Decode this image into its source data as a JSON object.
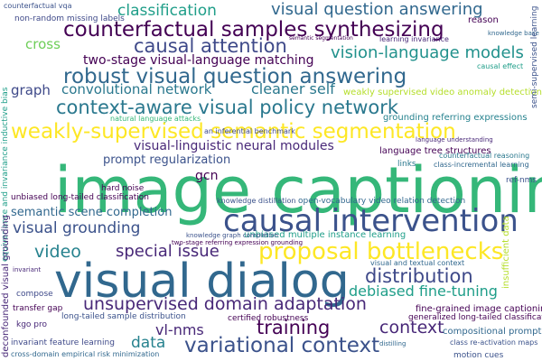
{
  "words": {
    "image_captioning": {
      "text": "image captioning",
      "color": "#35b779"
    },
    "visual_dialog": {
      "text": "visual dialog",
      "color": "#31688e"
    },
    "causal_intervention": {
      "text": "causal intervention",
      "color": "#3b528b"
    },
    "weakly_supervised_semantic_segmentation": {
      "text": "weakly-supervised semantic segmentation",
      "color": "#fde725"
    },
    "counterfactual_samples_synthesizing": {
      "text": "counterfactual samples synthesizing",
      "color": "#440154"
    },
    "robust_vqa": {
      "text": "robust visual question answering",
      "color": "#31688e"
    },
    "context_aware_visual_policy_network": {
      "text": "context-aware visual policy network",
      "color": "#2a788e"
    },
    "variational_context": {
      "text": "variational context",
      "color": "#3b528b"
    },
    "proposal_bottlenecks": {
      "text": "proposal bottlenecks",
      "color": "#fde725"
    },
    "unsupervised_domain_adaptation": {
      "text": "unsupervised domain adaptation",
      "color": "#482878"
    },
    "causal_attention": {
      "text": "causal attention",
      "color": "#3e4989"
    },
    "visual_question_answering": {
      "text": "visual question answering",
      "color": "#31688e"
    },
    "vision_language_models": {
      "text": "vision-language models",
      "color": "#21918c"
    },
    "classification": {
      "text": "classification",
      "color": "#1f9e89"
    },
    "distribution": {
      "text": "distribution",
      "color": "#3e4989"
    },
    "training": {
      "text": "training",
      "color": "#440154"
    },
    "visual_grounding": {
      "text": "visual grounding",
      "color": "#3b528b"
    },
    "video": {
      "text": "video",
      "color": "#26828e"
    },
    "special_issue": {
      "text": "special issue",
      "color": "#482878"
    },
    "context": {
      "text": "context",
      "color": "#482878"
    },
    "data": {
      "text": "data",
      "color": "#26828e"
    },
    "vl_nms": {
      "text": "vl-nms",
      "color": "#482878"
    },
    "debiased_fine_tuning": {
      "text": "debiased fine-tuning",
      "color": "#1f9e89"
    },
    "cross": {
      "text": "cross",
      "color": "#6ece58"
    },
    "graph": {
      "text": "graph",
      "color": "#3e4989"
    },
    "convolutional_network": {
      "text": "convolutional network",
      "color": "#2a788e"
    },
    "two_stage_vl_matching": {
      "text": "two-stage visual-language matching",
      "color": "#440154"
    },
    "cleaner_self": {
      "text": "cleaner self",
      "color": "#2a788e"
    },
    "visual_linguistic_neural_modules": {
      "text": "visual-linguistic neural modules",
      "color": "#482878"
    },
    "prompt_regularization": {
      "text": "prompt regularization",
      "color": "#3b528b"
    },
    "semantic_scene_completion": {
      "text": "semantic scene completion",
      "color": "#31688e"
    },
    "gcn": {
      "text": "gcn",
      "color": "#440154"
    },
    "weakly_supervised_video_anomaly_detection": {
      "text": "weakly supervised video anomaly detection",
      "color": "#b5de2b"
    },
    "grounding_referring_expressions": {
      "text": "grounding referring expressions",
      "color": "#26828e"
    },
    "language_tree_structures": {
      "text": "language tree structures",
      "color": "#440154"
    },
    "fine_grained_image_captioning": {
      "text": "fine-grained image captioning",
      "color": "#440154"
    },
    "compositional_prompt": {
      "text": "compositional prompt",
      "color": "#31688e"
    },
    "certified_robustness": {
      "text": "certified robustness",
      "color": "#440154"
    },
    "generalized_long_tailed_classification": {
      "text": "generalized long-tailed classification",
      "color": "#440154"
    },
    "open_vocabulary_video_relation_detection": {
      "text": "open-vocabulary video relation detection",
      "color": "#31688e"
    },
    "unbiased_multiple_instance_learning": {
      "text": "unbiased multiple instance learning",
      "color": "#1f9e89"
    },
    "unbiased_long_tailed_classification": {
      "text": "unbiased long-tailed classification",
      "color": "#440154"
    },
    "long_tailed_sample_distribution": {
      "text": "long-tailed sample distribution",
      "color": "#3b528b"
    },
    "invariant_feature_learning": {
      "text": "invariant feature learning",
      "color": "#3e4989"
    },
    "cross_domain_empirical_risk_minimization": {
      "text": "cross-domain empirical risk minimization",
      "color": "#31688e"
    },
    "motion_cues": {
      "text": "motion cues",
      "color": "#3b528b"
    },
    "knowledge_distillation": {
      "text": "knowledge distillation",
      "color": "#3b528b"
    },
    "visual_and_textual_context": {
      "text": "visual and textual context",
      "color": "#31688e"
    },
    "natural_language_attacks": {
      "text": "natural language attacks",
      "color": "#35b779"
    },
    "hard_noise": {
      "text": "hard noise",
      "color": "#440154"
    },
    "two_stage_referring_expression_grounding": {
      "text": "two-stage referring expression grounding",
      "color": "#440154"
    },
    "non_random_missing_labels": {
      "text": "non-random missing labels",
      "color": "#3e4989"
    },
    "counterfactual_vqa": {
      "text": "counterfactual vqa",
      "color": "#3b528b"
    },
    "learning_invariance": {
      "text": "learning invariance",
      "color": "#482878"
    },
    "reason": {
      "text": "reason",
      "color": "#440154"
    },
    "causal_effect": {
      "text": "causal effect",
      "color": "#1f9e89"
    },
    "semantic_segmentation": {
      "text": "semantic segmentation",
      "color": "#440154"
    },
    "language_understanding": {
      "text": "language understanding",
      "color": "#482878"
    },
    "counterfactual_reasoning": {
      "text": "counterfactual reasoning",
      "color": "#2a788e"
    },
    "class_incremental_learning": {
      "text": "class-incremental learning",
      "color": "#31688e"
    },
    "links": {
      "text": "links",
      "color": "#2a788e"
    },
    "ref_nms": {
      "text": "ref-nms",
      "color": "#3b528b"
    },
    "compose": {
      "text": "compose",
      "color": "#3e4989"
    },
    "transfer_gap": {
      "text": "transfer gap",
      "color": "#440154"
    },
    "kgo_pro": {
      "text": "kgo pro",
      "color": "#482878"
    },
    "invariant": {
      "text": "invariant",
      "color": "#482878"
    },
    "knowledge_graph_completion": {
      "text": "knowledge graph completion",
      "color": "#3b528b"
    },
    "distilling": {
      "text": "distilling",
      "color": "#31688e"
    },
    "class_re_activation_maps": {
      "text": "class re-activation maps",
      "color": "#3b528b"
    },
    "an_inferential_benchmark": {
      "text": "an inferential benchmark",
      "color": "#3e4989"
    },
    "knowledge_base": {
      "text": "knowledge base",
      "color": "#31688e"
    },
    "equivariance_and_invariance_inductive_bias": {
      "text": "equivariance and invariance inductive bias",
      "color": "#1f9e89"
    },
    "deconfounded_visual_grounding": {
      "text": "deconfounded visual grounding",
      "color": "#482878"
    },
    "semi_supervised_learning": {
      "text": "semi-supervised learning",
      "color": "#3b528b"
    },
    "insufficient_data": {
      "text": "insufficient data",
      "color": "#b5de2b"
    }
  }
}
